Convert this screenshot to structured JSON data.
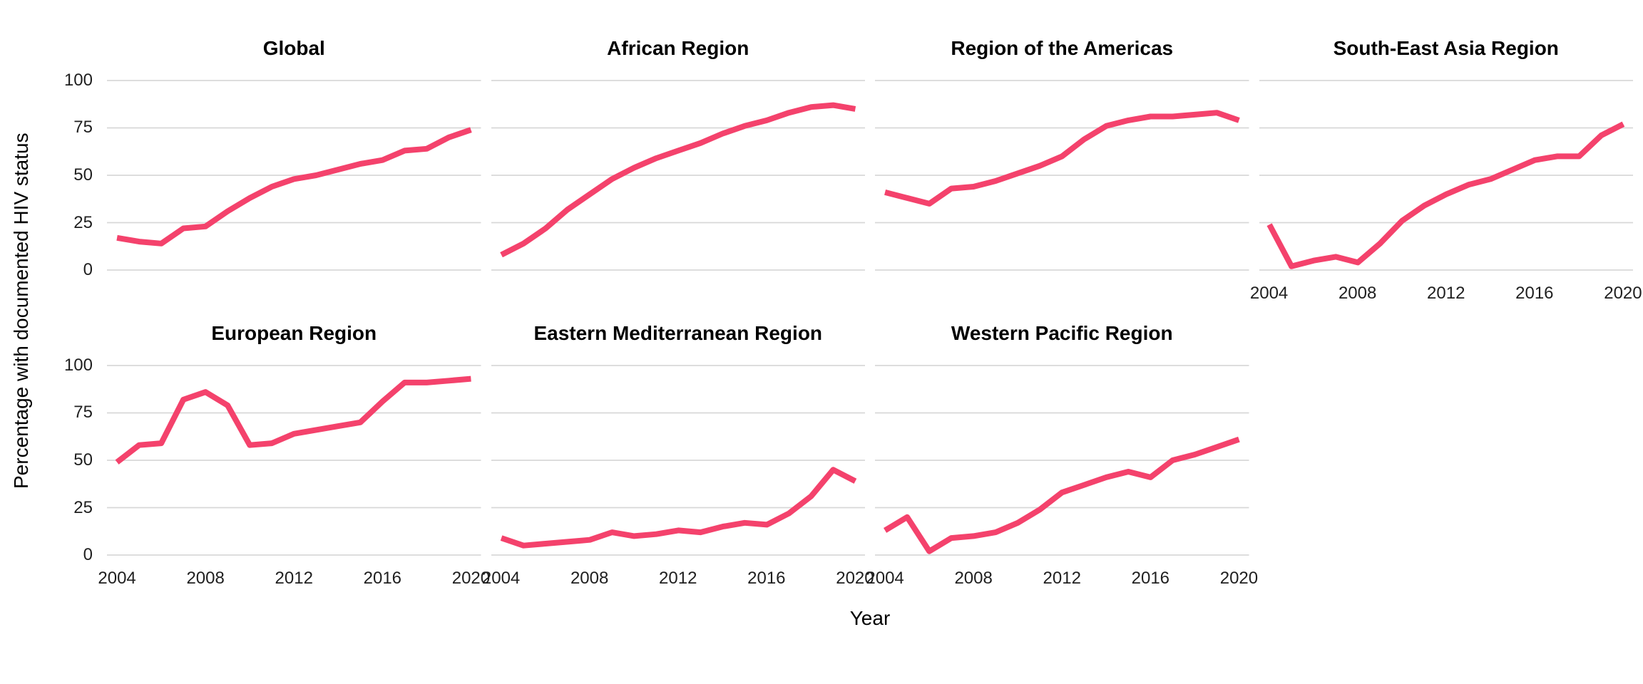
{
  "page": {
    "y_axis_title": "Percentage with documented HIV status",
    "x_axis_title": "Year"
  },
  "style": {
    "line_color": "#f4426c",
    "gridline_color": "#d8d8d8",
    "background": "#ffffff",
    "title_color": "#000000",
    "tick_color": "#1f1f1f"
  },
  "chart_data": {
    "type": "line",
    "x": [
      2004,
      2005,
      2006,
      2007,
      2008,
      2009,
      2010,
      2011,
      2012,
      2013,
      2014,
      2015,
      2016,
      2017,
      2018,
      2019,
      2020
    ],
    "x_ticks": [
      2004,
      2008,
      2012,
      2016,
      2020
    ],
    "y_ticks": [
      100,
      75,
      50,
      25,
      0
    ],
    "ylim": [
      0,
      100
    ],
    "xlabel": "Year",
    "ylabel": "Percentage with documented HIV status",
    "grid": "horizontal-major-only",
    "legend": "none",
    "facets": [
      {
        "title": "Global",
        "row": 0,
        "col": 0,
        "show_x_axis": false,
        "values": [
          17,
          15,
          14,
          22,
          23,
          31,
          38,
          44,
          48,
          50,
          53,
          56,
          58,
          63,
          64,
          70,
          74
        ]
      },
      {
        "title": "African Region",
        "row": 0,
        "col": 1,
        "show_x_axis": false,
        "values": [
          8,
          14,
          22,
          32,
          40,
          48,
          54,
          59,
          63,
          67,
          72,
          76,
          79,
          83,
          86,
          87,
          85
        ]
      },
      {
        "title": "Region of the Americas",
        "row": 0,
        "col": 2,
        "show_x_axis": false,
        "values": [
          41,
          38,
          35,
          43,
          44,
          47,
          51,
          55,
          60,
          69,
          76,
          79,
          81,
          81,
          82,
          83,
          79
        ]
      },
      {
        "title": "South-East Asia Region",
        "row": 0,
        "col": 3,
        "show_x_axis": true,
        "values": [
          24,
          2,
          5,
          7,
          4,
          14,
          26,
          34,
          40,
          45,
          48,
          53,
          58,
          60,
          60,
          71,
          77
        ]
      },
      {
        "title": "European Region",
        "row": 1,
        "col": 0,
        "show_x_axis": true,
        "values": [
          49,
          58,
          59,
          82,
          86,
          79,
          58,
          59,
          64,
          66,
          68,
          70,
          81,
          91,
          91,
          92,
          93
        ]
      },
      {
        "title": "Eastern Mediterranean Region",
        "row": 1,
        "col": 1,
        "show_x_axis": true,
        "values": [
          9,
          5,
          6,
          7,
          8,
          12,
          10,
          11,
          13,
          12,
          15,
          17,
          16,
          22,
          31,
          45,
          39
        ]
      },
      {
        "title": "Western Pacific Region",
        "row": 1,
        "col": 2,
        "show_x_axis": true,
        "values": [
          13,
          20,
          2,
          9,
          10,
          12,
          17,
          24,
          33,
          37,
          41,
          44,
          41,
          50,
          53,
          57,
          61
        ]
      }
    ]
  }
}
